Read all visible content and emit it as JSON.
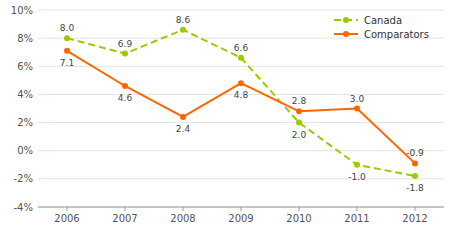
{
  "chart_data": {
    "type": "line",
    "x": [
      2006,
      2007,
      2008,
      2009,
      2010,
      2011,
      2012
    ],
    "xlim": [
      2005.5,
      2012.5
    ],
    "xticks": [
      2006,
      2007,
      2008,
      2009,
      2010,
      2011,
      2012
    ],
    "ylim": [
      -4,
      10
    ],
    "yticks": [
      {
        "value": -4,
        "label": "-4%"
      },
      {
        "value": -2,
        "label": "-2%"
      },
      {
        "value": 0,
        "label": "0%"
      },
      {
        "value": 2,
        "label": "2%"
      },
      {
        "value": 4,
        "label": "4%"
      },
      {
        "value": 6,
        "label": "6%"
      },
      {
        "value": 8,
        "label": "8%"
      },
      {
        "value": 10,
        "label": "10%"
      }
    ],
    "grid": true,
    "legend": "upper right",
    "data_labels": true,
    "series": [
      {
        "name": "Canada",
        "color": "#99cc00",
        "line_style": "dashed",
        "marker": "circle",
        "values": [
          8.0,
          6.9,
          8.6,
          6.6,
          2.0,
          -1.0,
          -1.8
        ],
        "value_labels": [
          "8.0",
          "6.9",
          "8.6",
          "6.6",
          "2.0",
          "-1.0",
          "-1.8"
        ]
      },
      {
        "name": "Comparators",
        "color": "#ff6600",
        "line_style": "solid",
        "marker": "circle",
        "values": [
          7.1,
          4.6,
          2.4,
          4.8,
          2.8,
          3.0,
          -0.9
        ],
        "value_labels": [
          "7.1",
          "4.6",
          "2.4",
          "4.8",
          "2.8",
          "3.0",
          "-0.9"
        ]
      }
    ]
  }
}
